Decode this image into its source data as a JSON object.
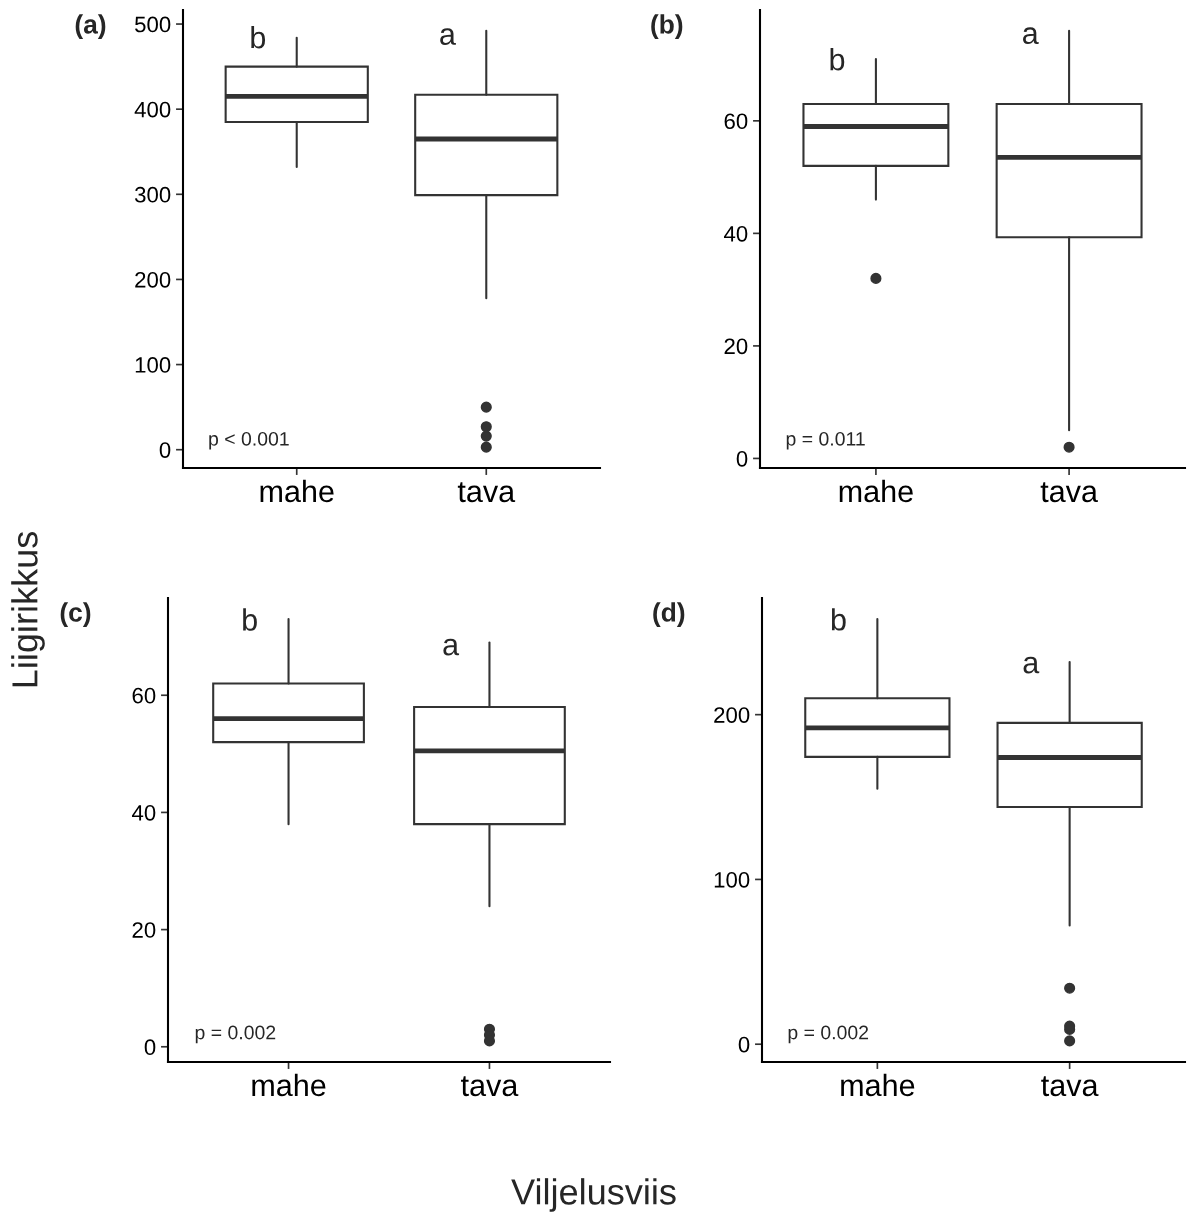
{
  "chart_data": [
    {
      "type": "box",
      "title": "(a)",
      "xlabel": "Viljelusviis",
      "ylabel": "Liigirikkus",
      "categories": [
        "mahe",
        "tava"
      ],
      "boxes": [
        {
          "low": 332,
          "q1": 385,
          "median": 415,
          "q3": 450,
          "high": 484
        },
        {
          "low": 178,
          "q1": 299,
          "median": 365,
          "q3": 417,
          "high": 492,
          "outliers": [
            50,
            27,
            16,
            3
          ]
        }
      ],
      "ylim": [
        -21.5,
        516.5
      ],
      "yticks": [
        0,
        100,
        200,
        300,
        400,
        500
      ],
      "annotations": [
        {
          "text": "b",
          "x": "mahe",
          "y": 481
        },
        {
          "text": "a",
          "x": "tava",
          "y": 485
        },
        "p < 0.001"
      ]
    },
    {
      "type": "box",
      "title": "(b)",
      "categories": [
        "mahe",
        "tava"
      ],
      "boxes": [
        {
          "low": 46,
          "q1": 52,
          "median": 59,
          "q3": 63,
          "high": 71,
          "outliers": [
            32
          ]
        },
        {
          "low": 5,
          "q1": 39.3,
          "median": 53.5,
          "q3": 63,
          "high": 76,
          "outliers": [
            2
          ]
        }
      ],
      "ylim": [
        -1.7,
        79.7
      ],
      "yticks": [
        0,
        20,
        40,
        60
      ],
      "annotations": [
        {
          "text": "b",
          "x": "mahe",
          "y": 70.4
        },
        {
          "text": "a",
          "x": "tava",
          "y": 75.1
        },
        "p = 0.011"
      ]
    },
    {
      "type": "box",
      "title": "(c)",
      "categories": [
        "mahe",
        "tava"
      ],
      "boxes": [
        {
          "low": 38,
          "q1": 52,
          "median": 56,
          "q3": 62,
          "high": 73
        },
        {
          "low": 24,
          "q1": 38,
          "median": 50.5,
          "q3": 58,
          "high": 69,
          "outliers": [
            3,
            2,
            1
          ]
        }
      ],
      "ylim": [
        -2.6,
        76.6
      ],
      "yticks": [
        0,
        20,
        40,
        60
      ],
      "annotations": [
        {
          "text": "b",
          "x": "mahe",
          "y": 72.4
        },
        {
          "text": "a",
          "x": "tava",
          "y": 68.2
        },
        "p = 0.002"
      ]
    },
    {
      "type": "box",
      "title": "(d)",
      "categories": [
        "mahe",
        "tava"
      ],
      "boxes": [
        {
          "low": 155,
          "q1": 174.4,
          "median": 192,
          "q3": 210,
          "high": 258
        },
        {
          "low": 72,
          "q1": 144,
          "median": 174,
          "q3": 195,
          "high": 232,
          "outliers": [
            34,
            11,
            9,
            2
          ]
        }
      ],
      "ylim": [
        -10.8,
        270.8
      ],
      "yticks": [
        0,
        100,
        200
      ],
      "annotations": [
        {
          "text": "b",
          "x": "mahe",
          "y": 256
        },
        {
          "text": "a",
          "x": "tava",
          "y": 230
        },
        "p = 0.002"
      ]
    }
  ]
}
